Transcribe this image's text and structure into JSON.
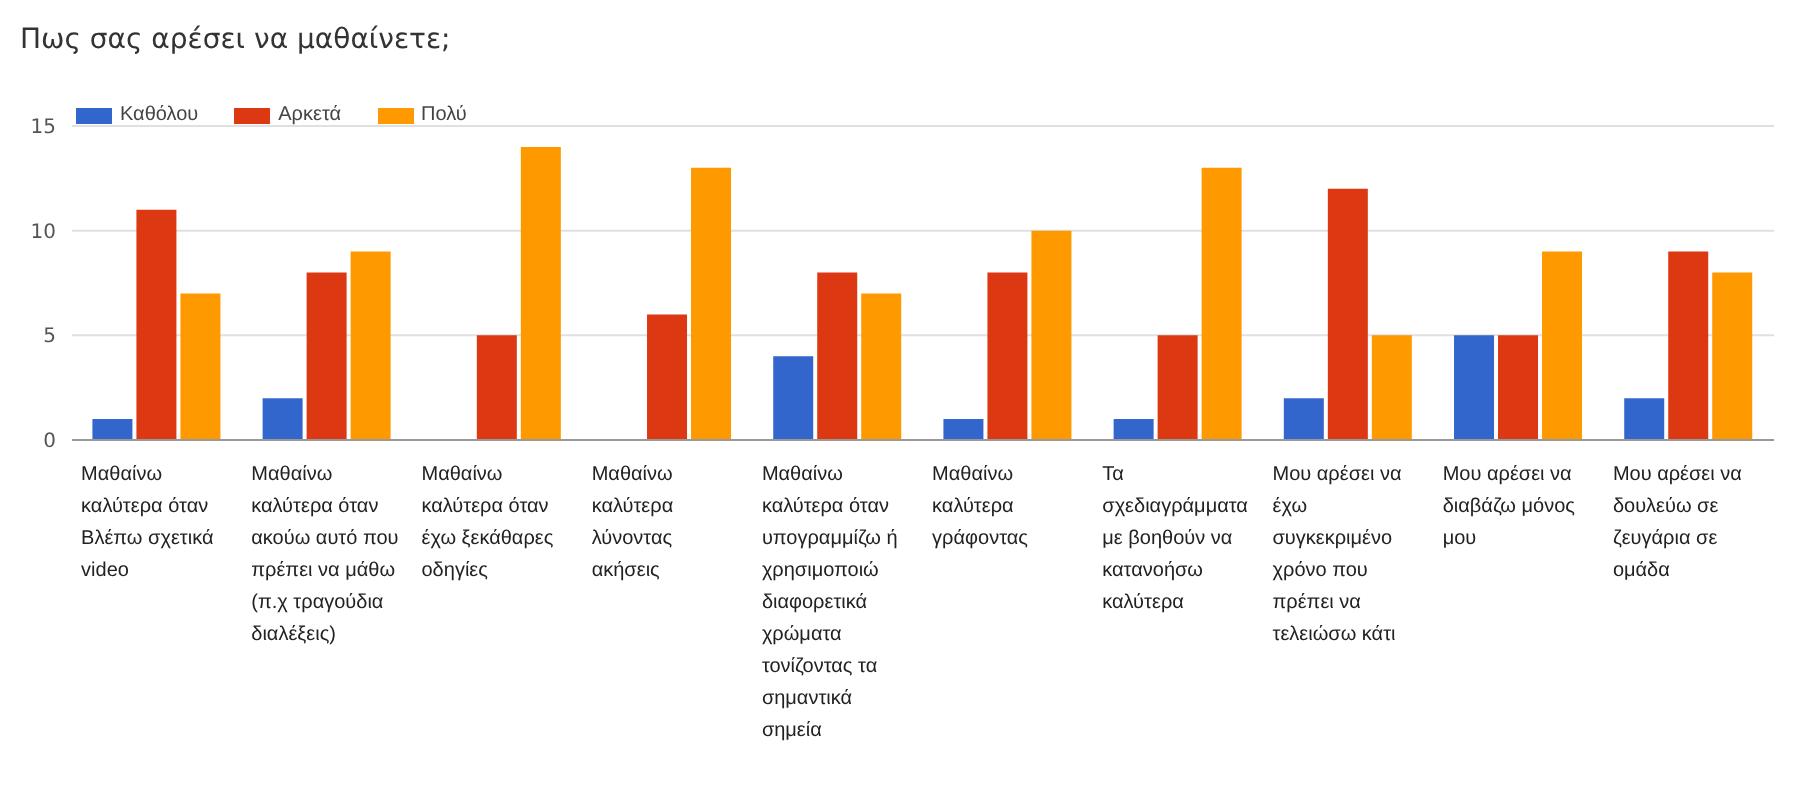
{
  "chart_data": {
    "type": "bar",
    "title": "Πως σας αρέσει να μαθαίνετε;",
    "categories": [
      "Μαθαίνω καλύτερα όταν Βλέπω σχετικά video",
      "Μαθαίνω καλύτερα όταν ακούω αυτό που πρέπει να μάθω (π.χ τραγούδια διαλέξεις)",
      "Μαθαίνω καλύτερα όταν έχω ξεκάθαρες οδηγίες",
      "Μαθαίνω καλύτερα λύνοντας ακήσεις",
      "Μαθαίνω καλύτερα όταν υπογραμμίζω ή χρησιμοποιώ διαφορετικά χρώματα τονίζοντας τα σημαντικά σημεία",
      "Μαθαίνω καλύτερα γράφοντας",
      "Τα σχεδιαγράμματα με βοηθούν να κατανοήσω καλύτερα",
      "Μου αρέσει να έχω συγκεκριμένο χρόνο που πρέπει να τελειώσω κάτι",
      "Μου αρέσει να διαβάζω μόνος μου",
      "Μου αρέσει να δουλεύω σε ζευγάρια σε ομάδα"
    ],
    "series": [
      {
        "name": "Καθόλου",
        "color": "#3366cc",
        "values": [
          1,
          2,
          0,
          0,
          4,
          1,
          1,
          2,
          5,
          2
        ]
      },
      {
        "name": "Αρκετά",
        "color": "#dc3912",
        "values": [
          11,
          8,
          5,
          6,
          8,
          8,
          5,
          12,
          5,
          9
        ]
      },
      {
        "name": "Πολύ",
        "color": "#ff9900",
        "values": [
          7,
          9,
          14,
          13,
          7,
          10,
          13,
          5,
          9,
          8
        ]
      }
    ],
    "ylim": [
      0,
      15
    ],
    "yticks": [
      0,
      5,
      10,
      15
    ],
    "grid": "y",
    "legend": "top left"
  }
}
